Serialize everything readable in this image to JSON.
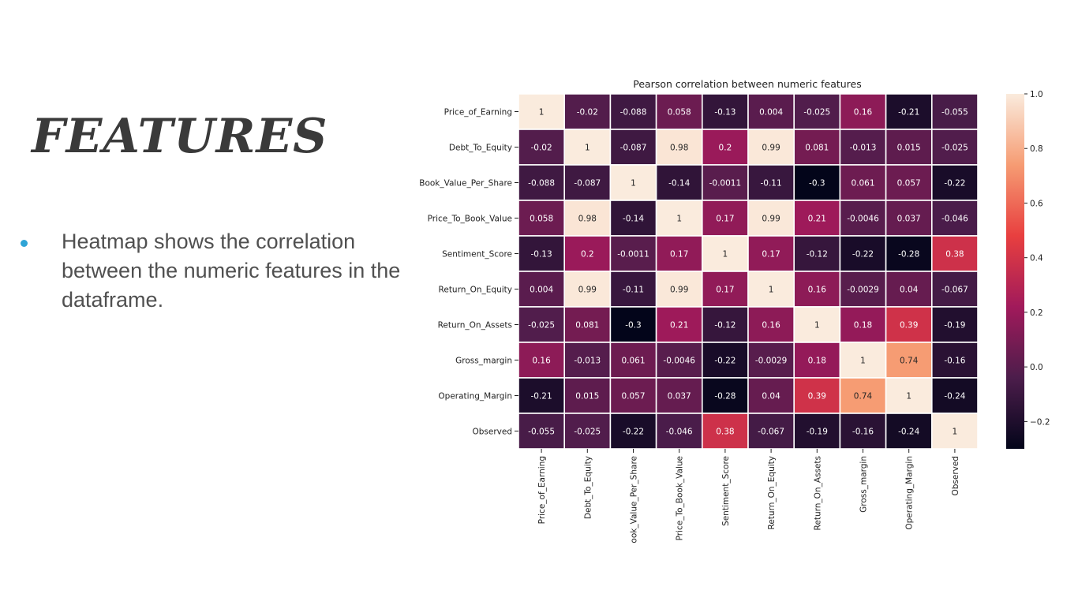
{
  "slide": {
    "title": "FEATURES",
    "bullet": "Heatmap shows the correlation between the numeric features in the dataframe."
  },
  "chart_data": {
    "type": "heatmap",
    "title": "Pearson correlation between numeric features",
    "y_labels": [
      "Price_of_Earning",
      "Debt_To_Equity",
      "Book_Value_Per_Share",
      "Price_To_Book_Value",
      "Sentiment_Score",
      "Return_On_Equity",
      "Return_On_Assets",
      "Gross_margin",
      "Operating_Margin",
      "Observed"
    ],
    "x_labels": [
      "Price_of_Earning",
      "Debt_To_Equity",
      "ook_Value_Per_Share",
      "Price_To_Book_Value",
      "Sentiment_Score",
      "Return_On_Equity",
      "Return_On_Assets",
      "Gross_margin",
      "Operating_Margin",
      "Observed"
    ],
    "values": [
      [
        1,
        -0.02,
        -0.088,
        0.058,
        -0.13,
        0.004,
        -0.025,
        0.16,
        -0.21,
        -0.055
      ],
      [
        -0.02,
        1,
        -0.087,
        0.98,
        0.2,
        0.99,
        0.081,
        -0.013,
        0.015,
        -0.025
      ],
      [
        -0.088,
        -0.087,
        1,
        -0.14,
        -0.0011,
        -0.11,
        -0.3,
        0.061,
        0.057,
        -0.22
      ],
      [
        0.058,
        0.98,
        -0.14,
        1,
        0.17,
        0.99,
        0.21,
        -0.0046,
        0.037,
        -0.046
      ],
      [
        -0.13,
        0.2,
        -0.0011,
        0.17,
        1,
        0.17,
        -0.12,
        -0.22,
        -0.28,
        0.38
      ],
      [
        0.004,
        0.99,
        -0.11,
        0.99,
        0.17,
        1,
        0.16,
        -0.0029,
        0.04,
        -0.067
      ],
      [
        -0.025,
        0.081,
        -0.3,
        0.21,
        -0.12,
        0.16,
        1,
        0.18,
        0.39,
        -0.19
      ],
      [
        0.16,
        -0.013,
        0.061,
        -0.0046,
        -0.22,
        -0.0029,
        0.18,
        1,
        0.74,
        -0.16
      ],
      [
        -0.21,
        0.015,
        0.057,
        0.037,
        -0.28,
        0.04,
        0.39,
        0.74,
        1,
        -0.24
      ],
      [
        -0.055,
        -0.025,
        -0.22,
        -0.046,
        0.38,
        -0.067,
        -0.19,
        -0.16,
        -0.24,
        1
      ]
    ],
    "colorbar": {
      "range": [
        -0.3,
        1.0
      ],
      "ticks": [
        1.0,
        0.8,
        0.6,
        0.4,
        0.2,
        0.0,
        -0.2
      ],
      "tick_labels": [
        "1.0",
        "0.8",
        "0.6",
        "0.4",
        "0.2",
        "0.0",
        "−0.2"
      ]
    },
    "colormap": [
      "#03051a",
      "#4c1d4b",
      "#a11a5b",
      "#e83f3f",
      "#f69c73",
      "#faebdd"
    ]
  }
}
